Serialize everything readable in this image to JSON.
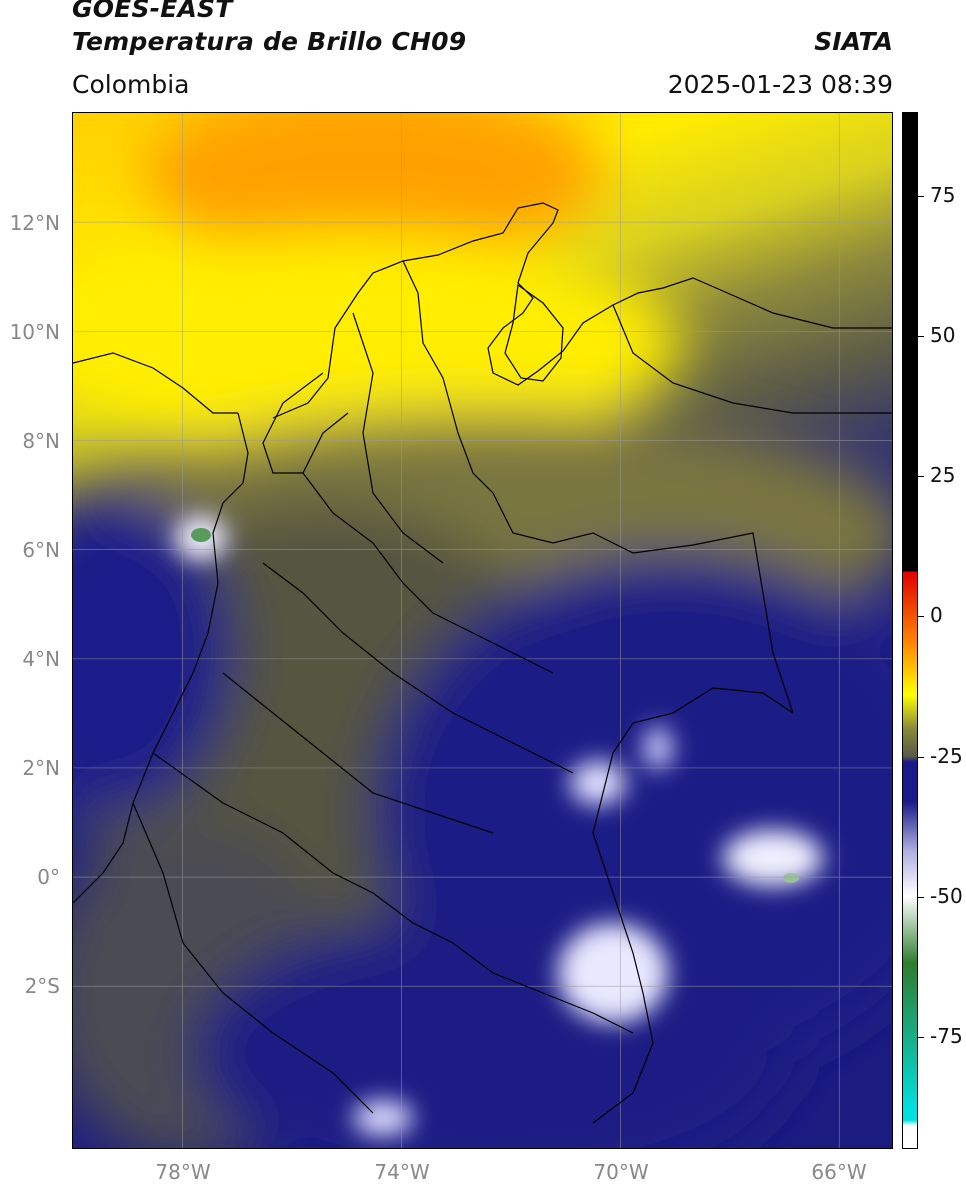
{
  "header": {
    "title_line1": "GOES-EAST",
    "title_line2": "Temperatura de Brillo CH09",
    "brand": "SIATA",
    "region": "Colombia",
    "datetime": "2025-01-23 08:39"
  },
  "map": {
    "lon_range": [
      -80,
      -65
    ],
    "lat_range": [
      -5,
      14
    ],
    "lat_labels": [
      "12°N",
      "10°N",
      "8°N",
      "6°N",
      "4°N",
      "2°N",
      "0°",
      "2°S"
    ],
    "lon_labels": [
      "78°W",
      "74°W",
      "70°W",
      "66°W"
    ]
  },
  "colorbar": {
    "range": [
      -95,
      90
    ],
    "ticks": [
      "75",
      "50",
      "25",
      "0",
      "-25",
      "-50",
      "-75"
    ],
    "tick_values": [
      75,
      50,
      25,
      0,
      -25,
      -50,
      -75
    ],
    "colors": {
      "black": "#000000",
      "red": "#e00000",
      "orange": "#ff8c00",
      "yellow": "#ffff00",
      "olive": "#8a8a3a",
      "gray": "#5a5a48",
      "navy": "#1a1a8a",
      "lavender": "#b0b0e0",
      "white": "#ffffff",
      "green": "#2e7d2e",
      "cyan": "#00e0e0"
    }
  }
}
